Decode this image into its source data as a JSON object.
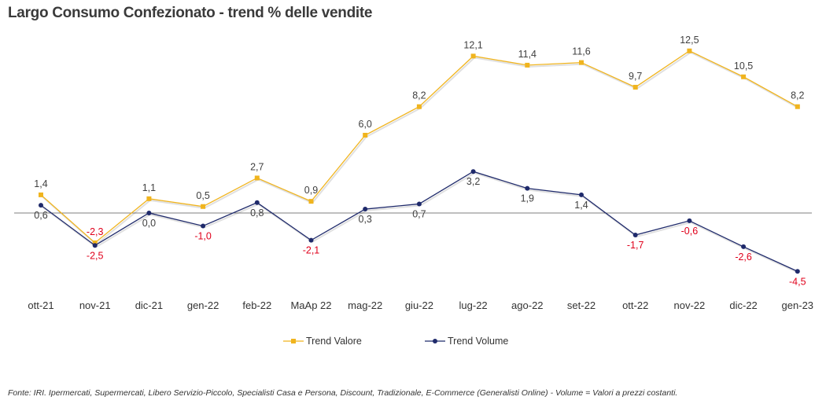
{
  "title": "Largo Consumo Confezionato - trend % delle vendite",
  "footnote": "Fonte: IRI. Ipermercati, Supermercati, Libero Servizio-Piccolo,  Specialisti Casa e Persona, Discount, Tradizionale, E-Commerce (Generalisti Online) -  Volume =  Valori a prezzi costanti.",
  "colors": {
    "valore": "#F0B41E",
    "volume": "#1F2A6B",
    "negative_label": "#E0001B",
    "label": "#404040",
    "zero_line": "#7F7F7F"
  },
  "chart_data": {
    "type": "line",
    "categories": [
      "ott-21",
      "nov-21",
      "dic-21",
      "gen-22",
      "feb-22",
      "MaAp 22",
      "mag-22",
      "giu-22",
      "lug-22",
      "ago-22",
      "set-22",
      "ott-22",
      "nov-22",
      "dic-22",
      "gen-23"
    ],
    "series": [
      {
        "name": "Trend Valore",
        "values": [
          1.4,
          -2.3,
          1.1,
          0.5,
          2.7,
          0.9,
          6.0,
          8.2,
          12.1,
          11.4,
          11.6,
          9.7,
          12.5,
          10.5,
          8.2
        ],
        "labels": [
          "1,4",
          "-2,3",
          "1,1",
          "0,5",
          "2,7",
          "0,9",
          "6,0",
          "8,2",
          "12,1",
          "11,4",
          "11,6",
          "9,7",
          "12,5",
          "10,5",
          "8,2"
        ],
        "color": "#F0B41E",
        "marker": "square",
        "label_position": "above"
      },
      {
        "name": "Trend Volume",
        "values": [
          0.6,
          -2.5,
          0.0,
          -1.0,
          0.8,
          -2.1,
          0.3,
          0.7,
          3.2,
          1.9,
          1.4,
          -1.7,
          -0.6,
          -2.6,
          -4.5
        ],
        "labels": [
          "0,6",
          "-2,5",
          "0,0",
          "-1,0",
          "0,8",
          "-2,1",
          "0,3",
          "0,7",
          "3,2",
          "1,9",
          "1,4",
          "-1,7",
          "-0,6",
          "-2,6",
          "-4,5"
        ],
        "color": "#1F2A6B",
        "marker": "circle",
        "label_position": "below"
      }
    ],
    "ylim": [
      -5,
      13
    ],
    "grid": false,
    "legend": "bottom"
  }
}
